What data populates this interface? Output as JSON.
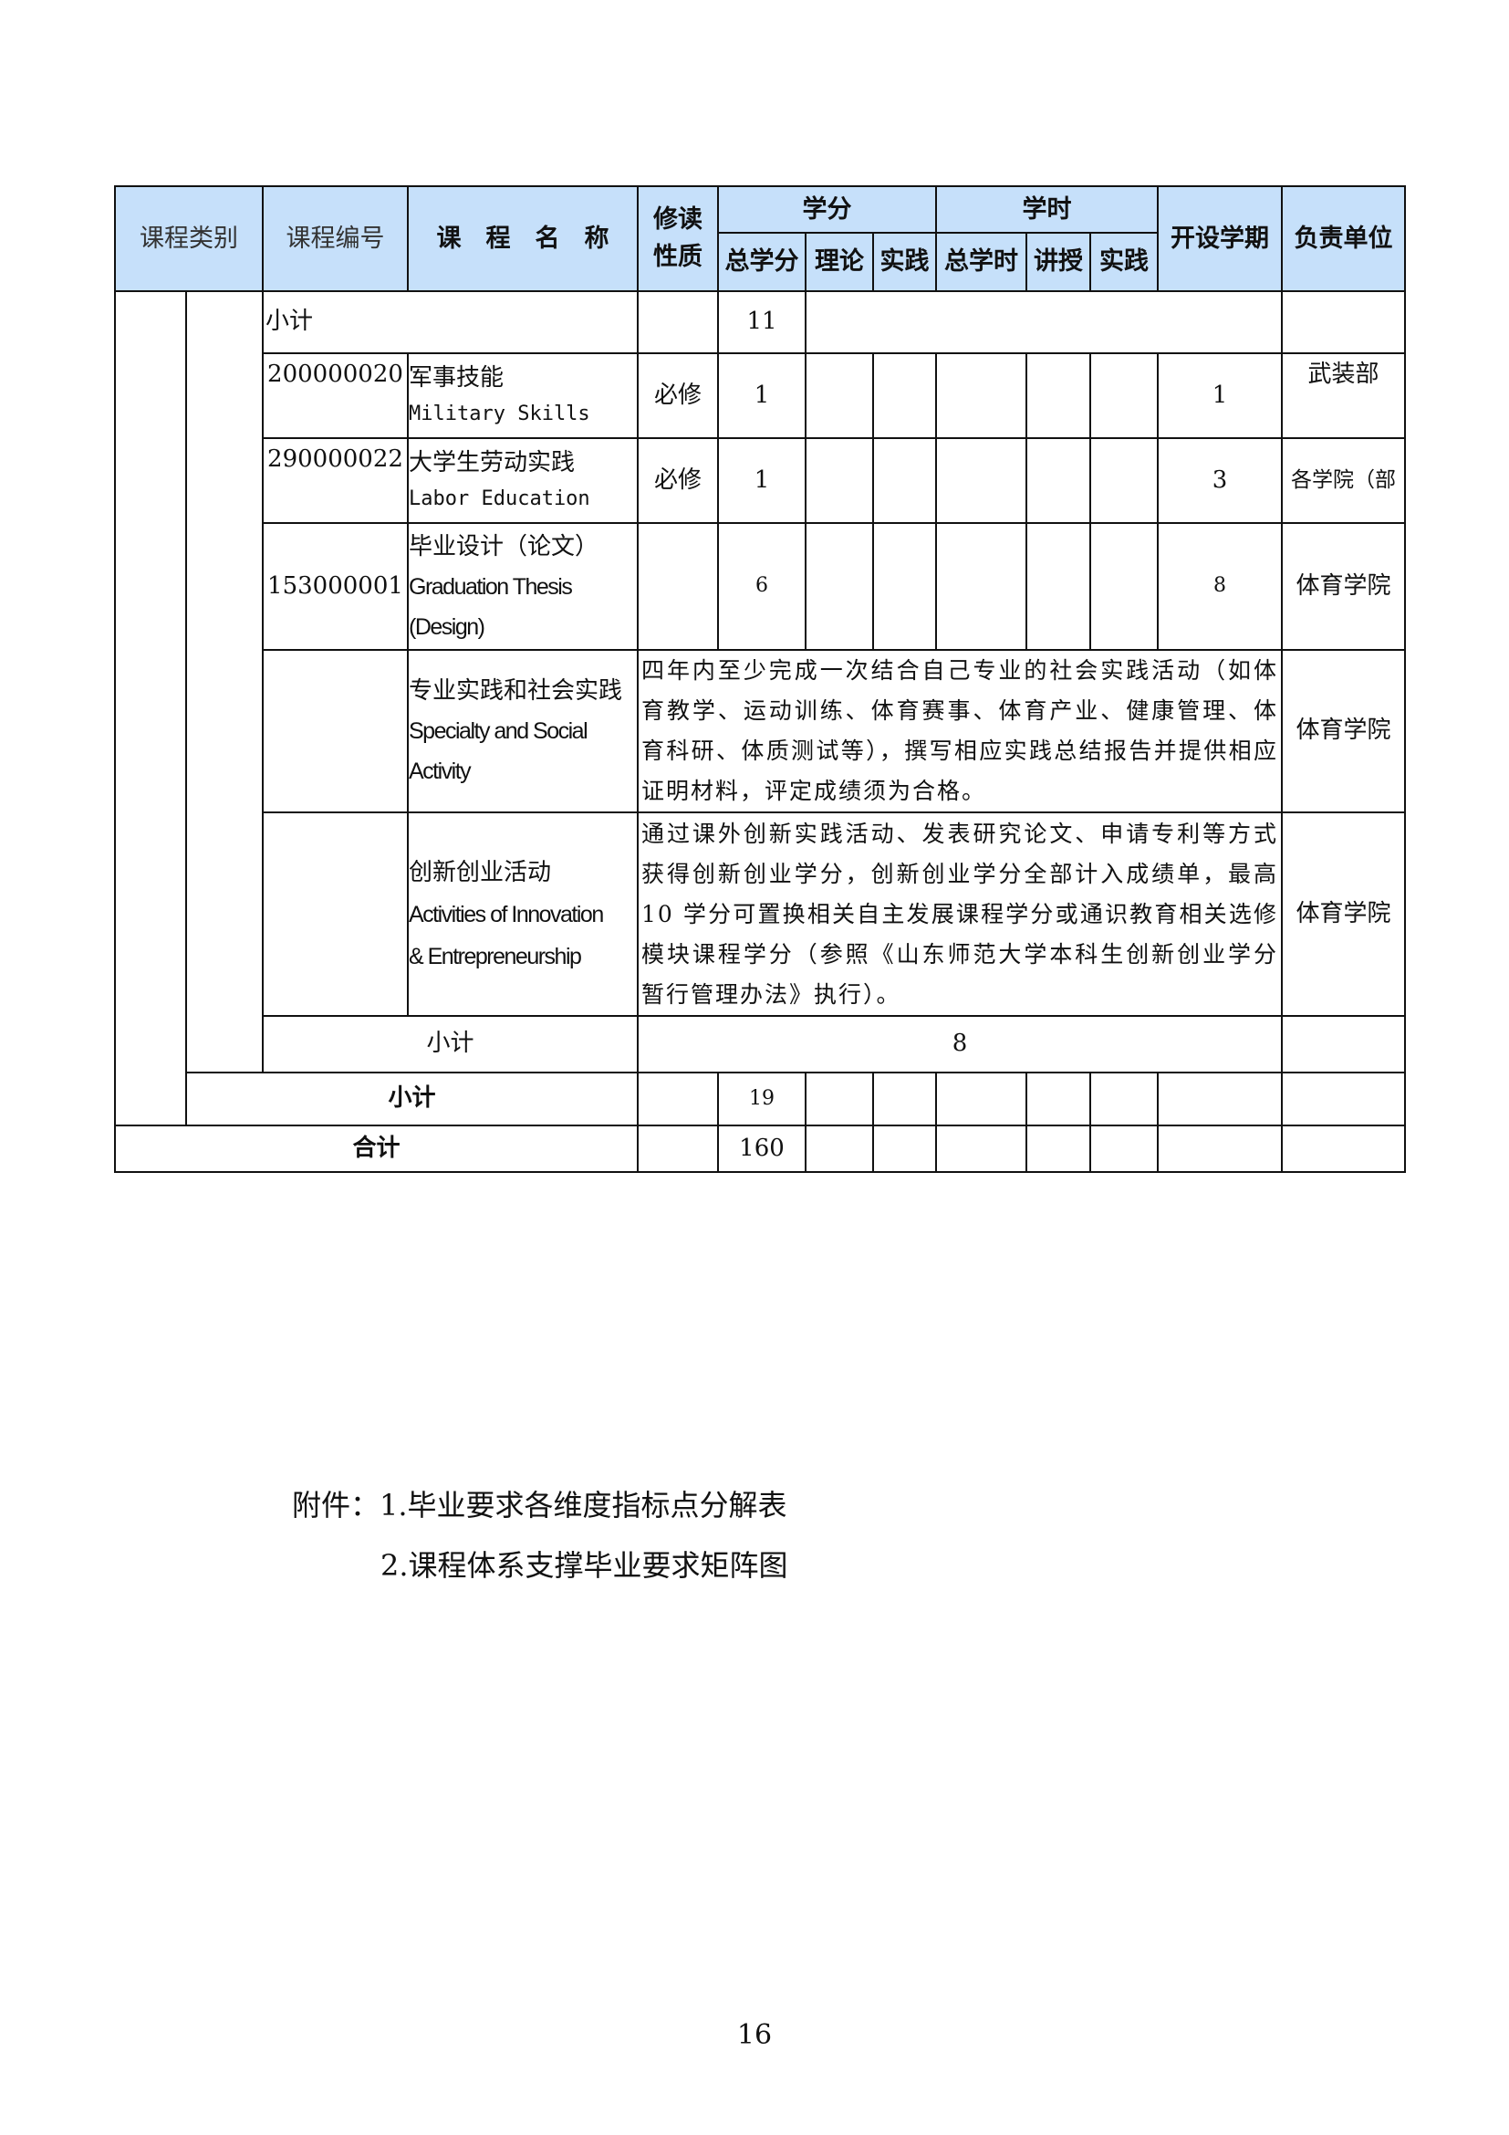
{
  "header": {
    "category": "课程类别",
    "code": "课程编号",
    "name": "课　程　名　称",
    "type": "修读性质",
    "credits": "学分",
    "credit_total": "总学分",
    "credit_theory": "理论",
    "credit_practice": "实践",
    "hours": "学时",
    "hours_total": "总学时",
    "hours_lecture": "讲授",
    "hours_practice": "实践",
    "semester": "开设学期",
    "department": "负责单位",
    "header_color": "#c6e0fa"
  },
  "rows": {
    "subtotal1": {
      "label": "小计",
      "credits": "11"
    },
    "military": {
      "code": "200000020",
      "name_cn": "军事技能",
      "name_en": "Military Skills",
      "type": "必修",
      "credits": "1",
      "semester": "1",
      "dept": "武装部"
    },
    "labor": {
      "code": "290000022",
      "name_cn": "大学生劳动实践",
      "name_en": "Labor Education",
      "type": "必修",
      "credits": "1",
      "semester": "3",
      "dept": "各学院（部"
    },
    "thesis": {
      "code": "153000001",
      "name_cn": "毕业设计（论文）",
      "name_en1": "Graduation Thesis",
      "name_en2": "(Design)",
      "credits": "6",
      "semester": "8",
      "dept": "体育学院"
    },
    "social": {
      "name_cn": "专业实践和社会实践",
      "name_en1": "Specialty and Social",
      "name_en2": "Activity",
      "desc": "四年内至少完成一次结合自己专业的社会实践活动（如体育教学、运动训练、体育赛事、体育产业、健康管理、体育科研、体质测试等），撰写相应实践总结报告并提供相应证明材料，评定成绩须为合格。",
      "dept": "体育学院"
    },
    "innovation": {
      "name_cn": "创新创业活动",
      "name_en1": "Activities of Innovation",
      "name_en2": "& Entrepreneurship",
      "desc": "通过课外创新实践活动、发表研究论文、申请专利等方式获得创新创业学分，创新创业学分全部计入成绩单，最高 10 学分可置换相关自主发展课程学分或通识教育相关选修模块课程学分（参照《山东师范大学本科生创新创业学分暂行管理办法》执行）。",
      "dept": "体育学院"
    },
    "subtotal2": {
      "label": "小计",
      "credits": "8"
    },
    "subtotal3": {
      "label": "小计",
      "credits": "19"
    },
    "total": {
      "label": "合计",
      "credits": "160"
    }
  },
  "attachments": {
    "line1": "附件：1.毕业要求各维度指标点分解表",
    "line2": "2.课程体系支撑毕业要求矩阵图"
  },
  "page_number": "16"
}
